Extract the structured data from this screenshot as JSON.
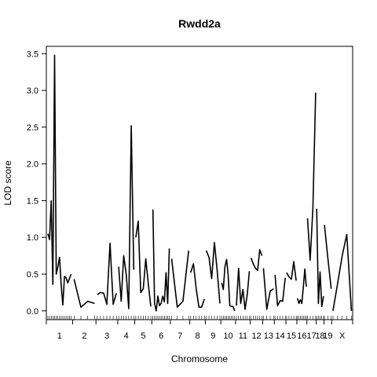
{
  "chart_data": {
    "type": "line",
    "title": "Rwdd2a",
    "xlabel": "Chromosome",
    "ylabel": "LOD score",
    "ylim": [
      -0.12,
      3.6
    ],
    "yticks": [
      0.0,
      0.5,
      1.0,
      1.5,
      2.0,
      2.5,
      3.0,
      3.5
    ],
    "ytick_labels": [
      "0.0",
      "0.5",
      "1.0",
      "1.5",
      "2.0",
      "2.5",
      "3.0",
      "3.5"
    ],
    "grid": false,
    "legend": "none",
    "line_color": "#000000",
    "chromosomes": [
      {
        "label": "1",
        "start": 0.0,
        "end": 34.0,
        "values": [
          1.05,
          0.97,
          1.5,
          0.36,
          3.48,
          0.5,
          0.6,
          0.73,
          0.35,
          0.08,
          0.47,
          0.45,
          0.38,
          0.44,
          0.5
        ]
      },
      {
        "label": "2",
        "start": 34.0,
        "end": 64.0,
        "values": [
          0.43,
          0.05,
          0.13,
          0.1
        ]
      },
      {
        "label": "3",
        "start": 64.0,
        "end": 92.0,
        "values": [
          0.22,
          0.25,
          0.24,
          0.09,
          0.92,
          0.09,
          0.24
        ]
      },
      {
        "label": "4",
        "start": 92.0,
        "end": 114.0,
        "values": [
          0.6,
          0.13,
          0.75,
          0.5,
          0.03,
          2.52,
          0.56
        ]
      },
      {
        "label": "5",
        "start": 114.0,
        "end": 136.0,
        "values": [
          1.0,
          1.22,
          0.25,
          0.3,
          0.71,
          0.37,
          0.06
        ]
      },
      {
        "label": "6",
        "start": 136.0,
        "end": 160.0,
        "values": [
          1.38,
          0.1,
          0.0,
          0.2,
          0.07,
          0.1,
          0.2,
          0.12,
          0.52,
          0.1,
          0.85
        ]
      },
      {
        "label": "7",
        "start": 160.0,
        "end": 185.0,
        "values": [
          0.71,
          0.05,
          0.13,
          0.82
        ]
      },
      {
        "label": "8",
        "start": 185.0,
        "end": 205.0,
        "values": [
          0.52,
          0.64,
          0.3,
          0.05,
          0.05,
          0.16
        ]
      },
      {
        "label": "9",
        "start": 205.0,
        "end": 225.0,
        "values": [
          0.82,
          0.73,
          0.44,
          0.93,
          0.55,
          0.1
        ]
      },
      {
        "label": "10",
        "start": 225.0,
        "end": 244.0,
        "values": [
          0.38,
          0.29,
          0.6,
          0.7,
          0.49,
          0.07,
          0.06,
          0.06,
          0.0
        ]
      },
      {
        "label": "11",
        "start": 244.0,
        "end": 263.0,
        "values": [
          0.07,
          0.58,
          0.1,
          0.29,
          0.02,
          0.22,
          0.54
        ]
      },
      {
        "label": "12",
        "start": 263.0,
        "end": 279.0,
        "values": [
          0.72,
          0.64,
          0.58,
          0.55,
          0.83,
          0.75
        ]
      },
      {
        "label": "13",
        "start": 279.0,
        "end": 294.0,
        "values": [
          0.58,
          0.02,
          0.27,
          0.3
        ]
      },
      {
        "label": "14",
        "start": 294.0,
        "end": 309.0,
        "values": [
          0.49,
          0.07,
          0.14,
          0.13,
          0.45
        ]
      },
      {
        "label": "15",
        "start": 309.0,
        "end": 323.0,
        "values": [
          0.52,
          0.46,
          0.43,
          0.67,
          0.41
        ]
      },
      {
        "label": "16",
        "start": 323.0,
        "end": 336.0,
        "values": [
          0.17,
          0.1,
          0.15,
          0.1,
          0.32,
          0.57,
          0.33
        ]
      },
      {
        "label": "17",
        "start": 336.0,
        "end": 348.0,
        "values": [
          1.26,
          0.69,
          1.4,
          2.97
        ]
      },
      {
        "label": "18",
        "start": 348.0,
        "end": 358.0,
        "values": [
          1.39,
          0.1,
          0.53,
          0.06,
          0.2
        ]
      },
      {
        "label": "19",
        "start": 358.0,
        "end": 368.0,
        "values": [
          1.17,
          0.72,
          0.3
        ]
      },
      {
        "label": "X",
        "start": 368.0,
        "end": 395.0,
        "values": [
          0.0,
          0.37,
          0.75,
          1.04,
          0.0
        ]
      }
    ]
  }
}
